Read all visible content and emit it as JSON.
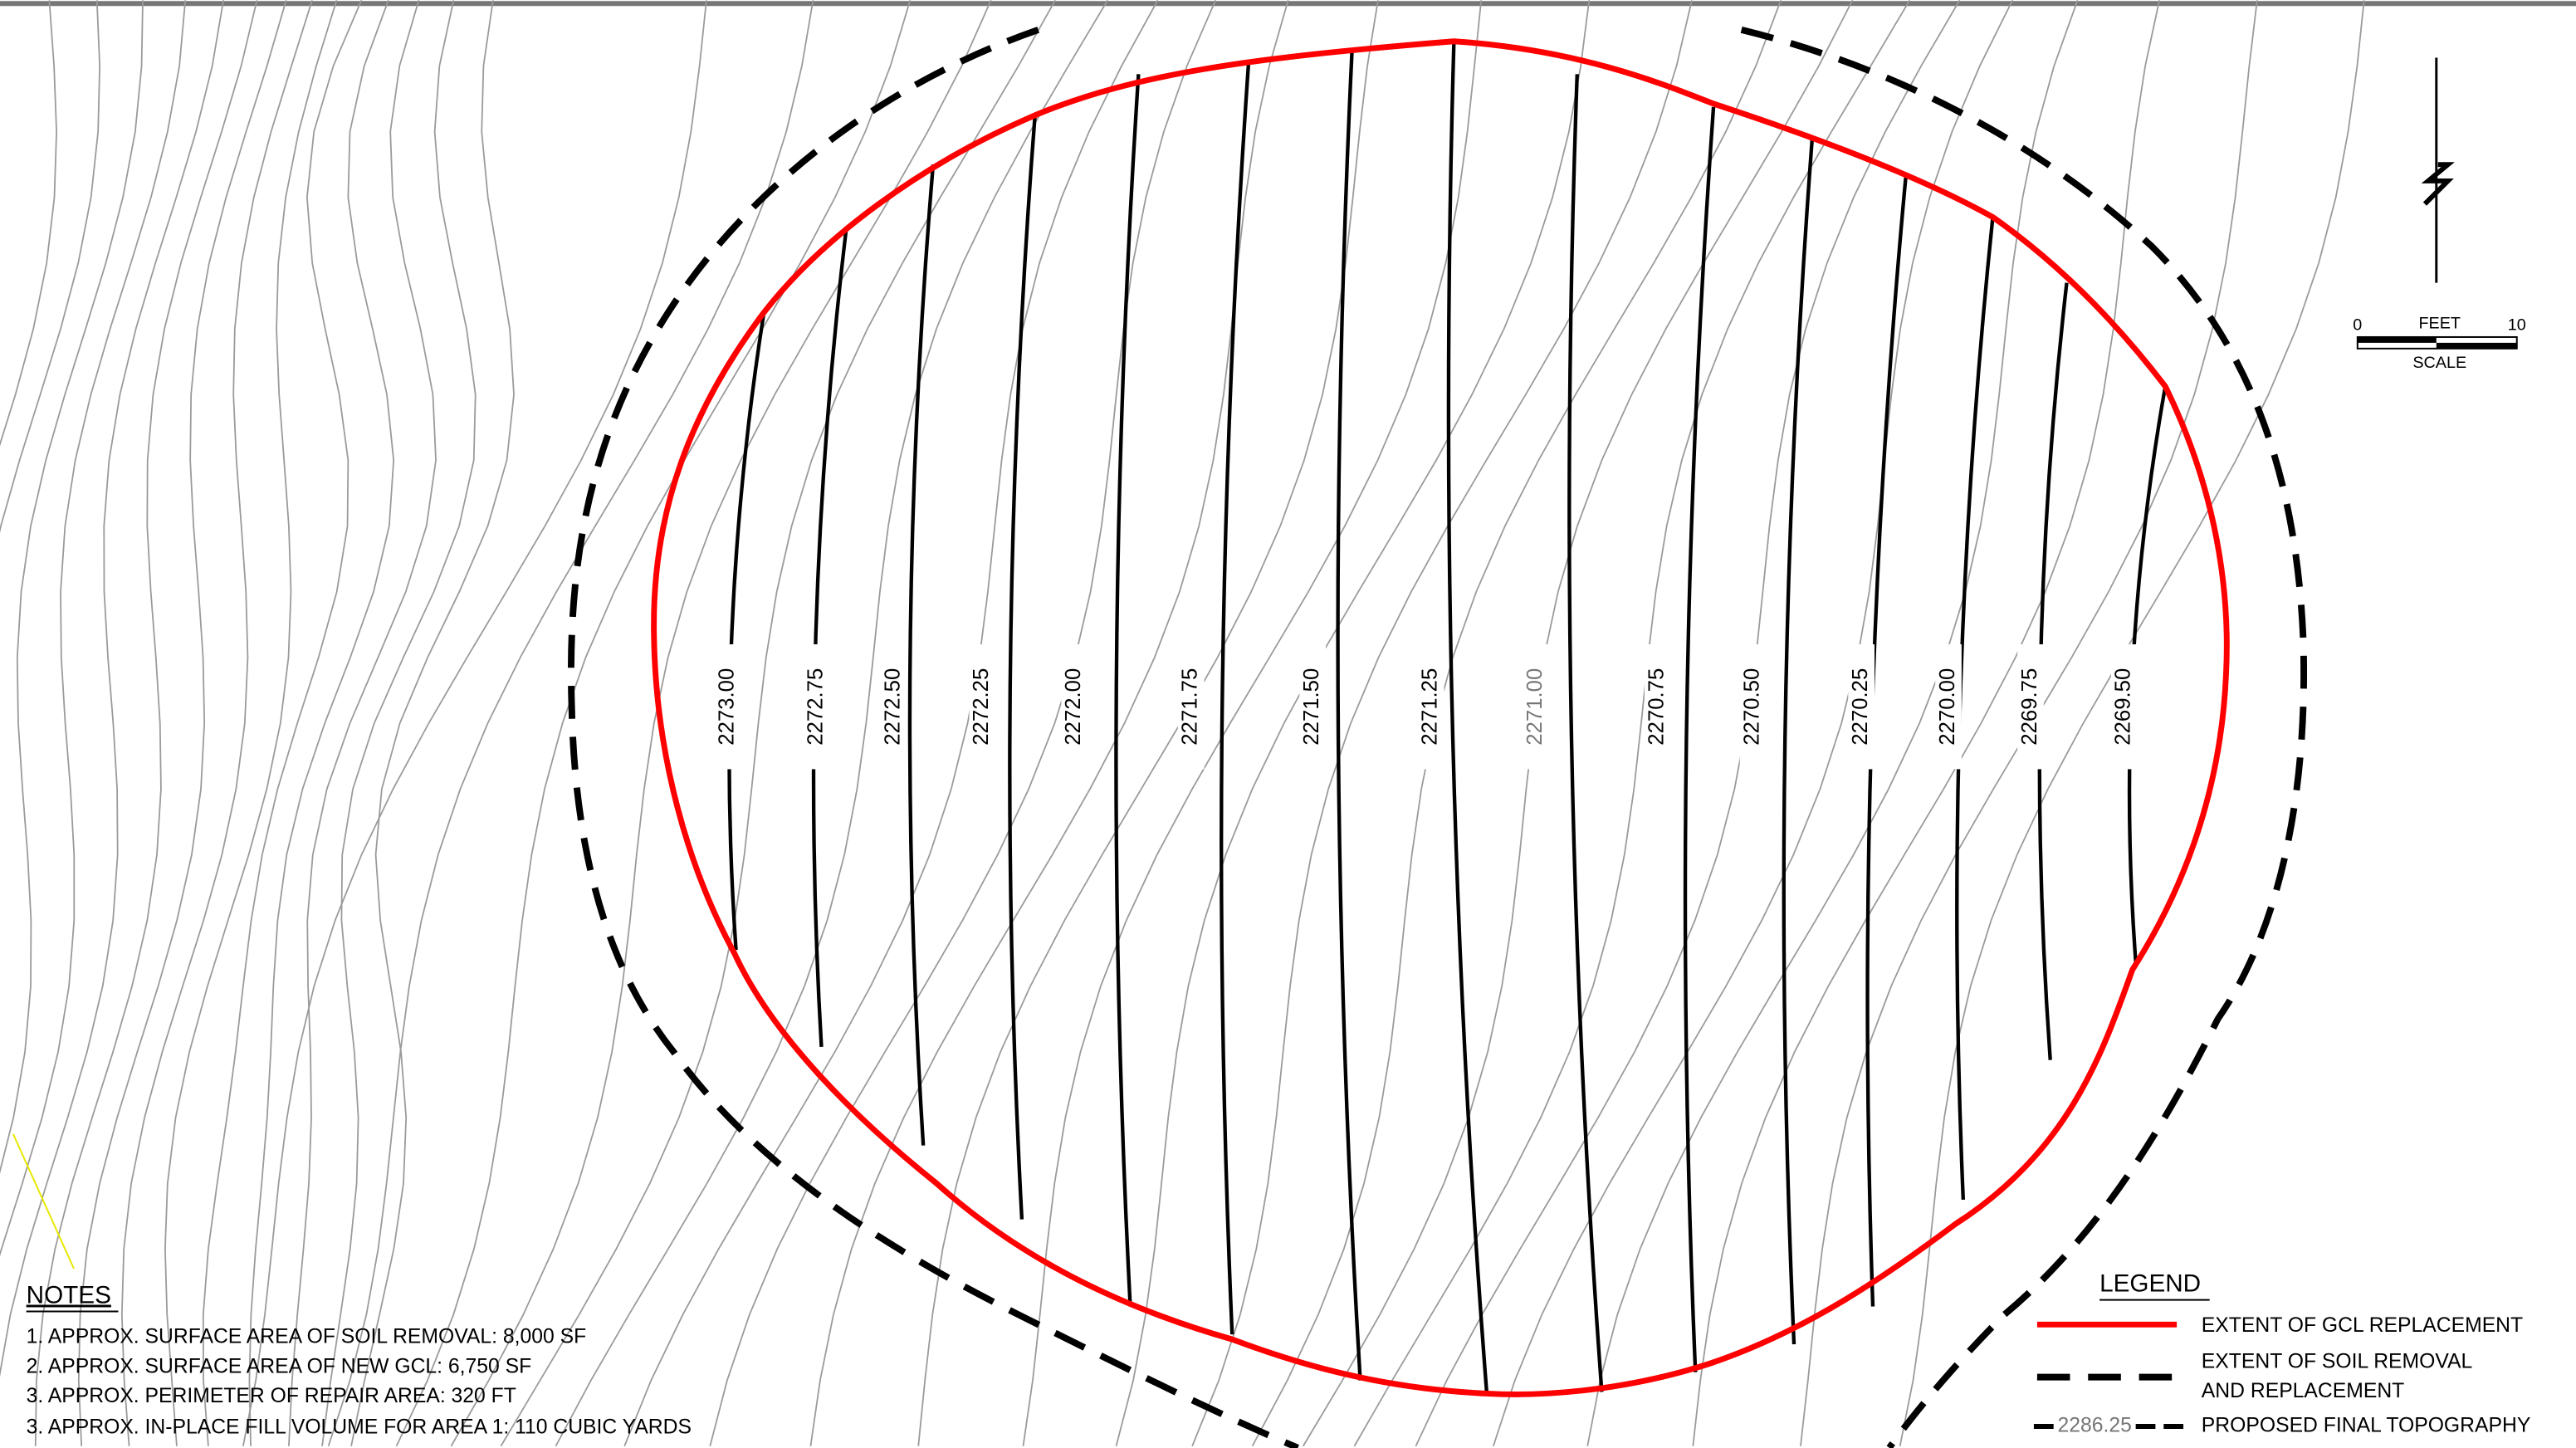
{
  "contours": [
    "2273.00",
    "2272.75",
    "2272.50",
    "2272.25",
    "2272.00",
    "2271.75",
    "2271.50",
    "2271.25",
    "2271.00",
    "2270.75",
    "2270.50",
    "2270.25",
    "2270.00",
    "2269.75",
    "2269.50"
  ],
  "scale": {
    "unit": "FEET",
    "min": "0",
    "max": "10",
    "label": "SCALE"
  },
  "notes": {
    "title": "NOTES",
    "items": [
      "1. APPROX. SURFACE AREA OF SOIL REMOVAL:  8,000 SF",
      "2. APPROX. SURFACE AREA OF NEW GCL:  6,750 SF",
      "3. APPROX. PERIMETER OF REPAIR AREA:  320 FT",
      "3. APPROX. IN-PLACE FILL VOLUME FOR AREA 1: 110 CUBIC YARDS"
    ]
  },
  "legend": {
    "title": "LEGEND",
    "gcl": "EXTENT OF GCL REPLACEMENT",
    "soil": [
      "EXTENT OF SOIL REMOVAL",
      "AND REPLACEMENT"
    ],
    "topo_sample": "2286.25",
    "topo": "PROPOSED FINAL TOPOGRAPHY"
  }
}
